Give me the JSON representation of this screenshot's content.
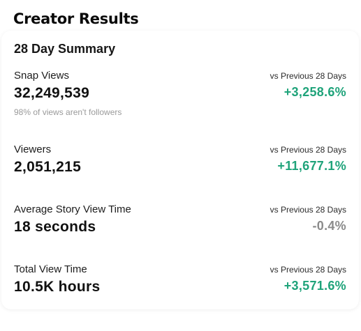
{
  "header": {
    "title": "Creator Results"
  },
  "summary": {
    "title": "28 Day Summary",
    "metrics": [
      {
        "label": "Snap Views",
        "value": "32,249,539",
        "note": "98% of views aren't followers",
        "compare_label": "vs Previous 28 Days",
        "change": "+3,258.6%",
        "trend": "up"
      },
      {
        "label": "Viewers",
        "value": "2,051,215",
        "compare_label": "vs Previous 28 Days",
        "change": "+11,677.1%",
        "trend": "up"
      },
      {
        "label": "Average Story View Time",
        "value": "18 seconds",
        "compare_label": "vs Previous 28 Days",
        "change": "-0.4%",
        "trend": "down"
      },
      {
        "label": "Total View Time",
        "value": "10.5K hours",
        "compare_label": "vs Previous 28 Days",
        "change": "+3,571.6%",
        "trend": "up"
      }
    ]
  },
  "colors": {
    "positive": "#1fa37a",
    "negative": "#8b8b8b"
  }
}
